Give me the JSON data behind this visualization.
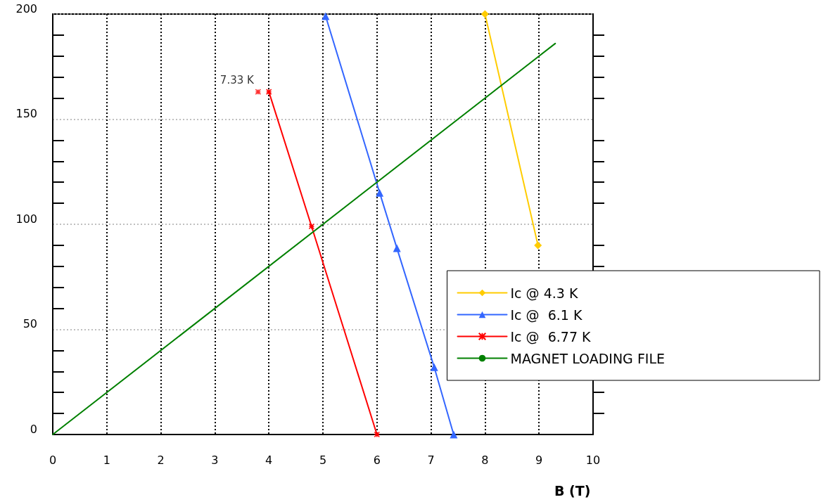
{
  "chart_data": {
    "type": "line",
    "xlabel": "B (T)",
    "xlim": [
      0,
      10
    ],
    "xticks": [
      0,
      1,
      2,
      3,
      4,
      5,
      6,
      7,
      8,
      9,
      10
    ],
    "ylim": [
      0,
      200
    ],
    "yticks": [
      0,
      50,
      100,
      150,
      200
    ],
    "grid": true,
    "legend": "right",
    "line_style": "solid",
    "annotations": [
      {
        "text": "7.33 K",
        "x": 3.8,
        "y": 163
      }
    ],
    "series": [
      {
        "name": "Ic @ 4.3 K",
        "color": "#ffcc00",
        "marker": "diamond",
        "x": [
          8.0,
          8.98
        ],
        "values": [
          200,
          90
        ]
      },
      {
        "name": "Ic @  6.1 K",
        "color": "#3366ff",
        "marker": "triangle",
        "x": [
          5.05,
          6.05,
          6.37,
          7.06,
          7.42
        ],
        "values": [
          199,
          115,
          88.6,
          32,
          0
        ]
      },
      {
        "name": "Ic @  6.77 K",
        "color": "#ff0000",
        "marker": "cross",
        "x": [
          4.0,
          4.79,
          6.0
        ],
        "values": [
          163,
          99,
          0
        ]
      },
      {
        "name": "MAGNET LOADING FILE",
        "color": "#008000",
        "marker": "none",
        "x": [
          0,
          9.3
        ],
        "values": [
          0,
          186
        ]
      },
      {
        "type": "scatter",
        "color": "#ff0000",
        "marker": "cross",
        "x": [
          3.8
        ],
        "values": [
          163
        ]
      }
    ]
  }
}
